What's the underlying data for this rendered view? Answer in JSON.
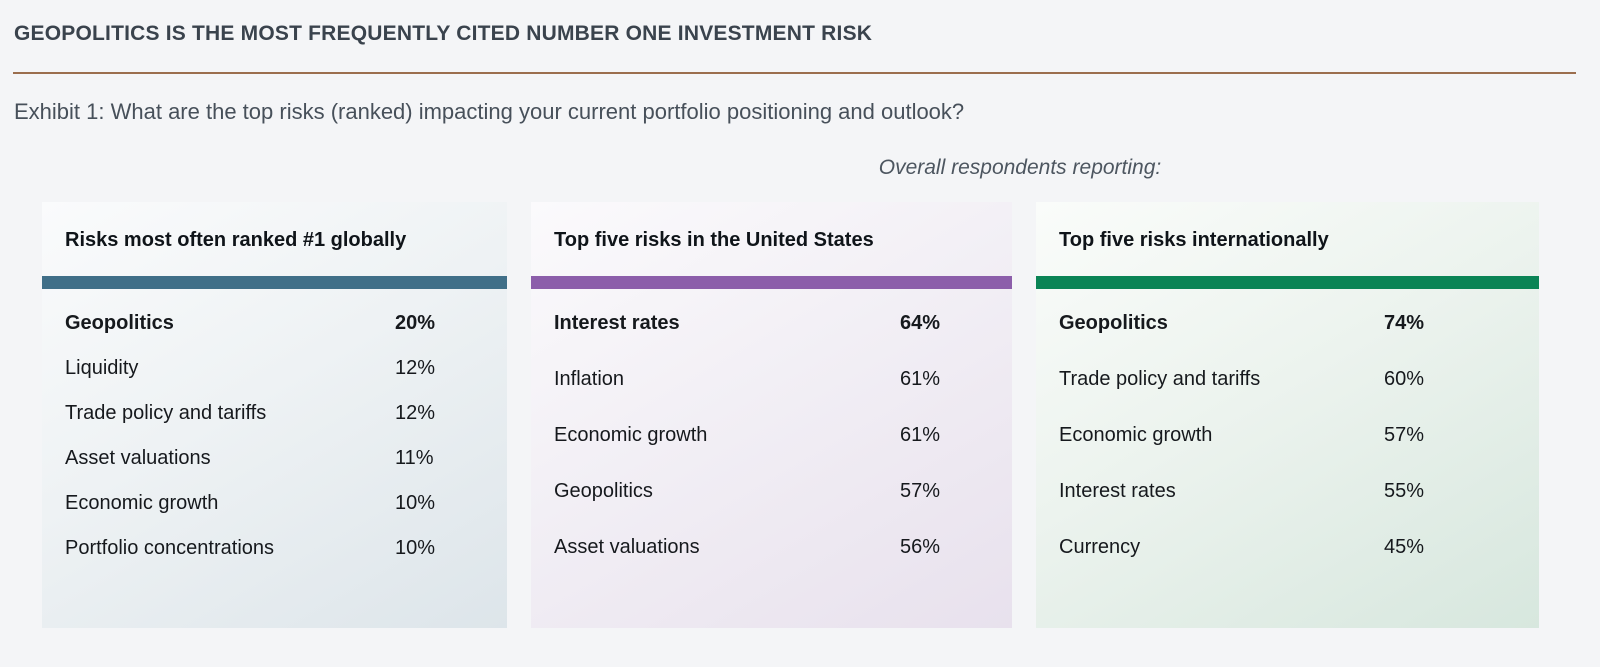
{
  "header": {
    "title": "GEOPOLITICS IS THE MOST FREQUENTLY CITED NUMBER ONE INVESTMENT RISK",
    "subtitle": "Exhibit 1: What are the top risks (ranked) impacting your current portfolio positioning and outlook?",
    "note": "Overall respondents reporting:"
  },
  "colors": {
    "rule": "#9b6e4e",
    "accent_global": "#406f88",
    "accent_us": "#8c5eaa",
    "accent_intl": "#0a8455"
  },
  "panels": [
    {
      "title": "Risks most often ranked #1 globally",
      "accent": "#406f88",
      "rows": [
        {
          "label": "Geopolitics",
          "value": "20%",
          "emphasis": true
        },
        {
          "label": "Liquidity",
          "value": "12%",
          "emphasis": false
        },
        {
          "label": "Trade policy and tariffs",
          "value": "12%",
          "emphasis": false
        },
        {
          "label": "Asset valuations",
          "value": "11%",
          "emphasis": false
        },
        {
          "label": "Economic growth",
          "value": "10%",
          "emphasis": false
        },
        {
          "label": "Portfolio concentrations",
          "value": "10%",
          "emphasis": false
        }
      ]
    },
    {
      "title": "Top five risks in the United States",
      "accent": "#8c5eaa",
      "rows": [
        {
          "label": "Interest rates",
          "value": "64%",
          "emphasis": true
        },
        {
          "label": "Inflation",
          "value": "61%",
          "emphasis": false
        },
        {
          "label": "Economic growth",
          "value": "61%",
          "emphasis": false
        },
        {
          "label": "Geopolitics",
          "value": "57%",
          "emphasis": false
        },
        {
          "label": "Asset valuations",
          "value": "56%",
          "emphasis": false
        }
      ]
    },
    {
      "title": "Top five risks internationally",
      "accent": "#0a8455",
      "rows": [
        {
          "label": "Geopolitics",
          "value": "74%",
          "emphasis": true
        },
        {
          "label": "Trade policy and tariffs",
          "value": "60%",
          "emphasis": false
        },
        {
          "label": "Economic growth",
          "value": "57%",
          "emphasis": false
        },
        {
          "label": "Interest rates",
          "value": "55%",
          "emphasis": false
        },
        {
          "label": "Currency",
          "value": "45%",
          "emphasis": false
        }
      ]
    }
  ],
  "chart_data": [
    {
      "type": "table",
      "title": "Risks most often ranked #1 globally",
      "note": "Overall respondents reporting:",
      "unit": "%",
      "categories": [
        "Geopolitics",
        "Liquidity",
        "Trade policy and tariffs",
        "Asset valuations",
        "Economic growth",
        "Portfolio concentrations"
      ],
      "values": [
        20,
        12,
        12,
        11,
        10,
        10
      ],
      "accent_color": "#406f88"
    },
    {
      "type": "table",
      "title": "Top five risks in the United States",
      "note": "Overall respondents reporting:",
      "unit": "%",
      "categories": [
        "Interest rates",
        "Inflation",
        "Economic growth",
        "Geopolitics",
        "Asset valuations"
      ],
      "values": [
        64,
        61,
        61,
        57,
        56
      ],
      "accent_color": "#8c5eaa"
    },
    {
      "type": "table",
      "title": "Top five risks internationally",
      "note": "Overall respondents reporting:",
      "unit": "%",
      "categories": [
        "Geopolitics",
        "Trade policy and tariffs",
        "Economic growth",
        "Interest rates",
        "Currency"
      ],
      "values": [
        74,
        60,
        57,
        55,
        45
      ],
      "accent_color": "#0a8455"
    }
  ]
}
